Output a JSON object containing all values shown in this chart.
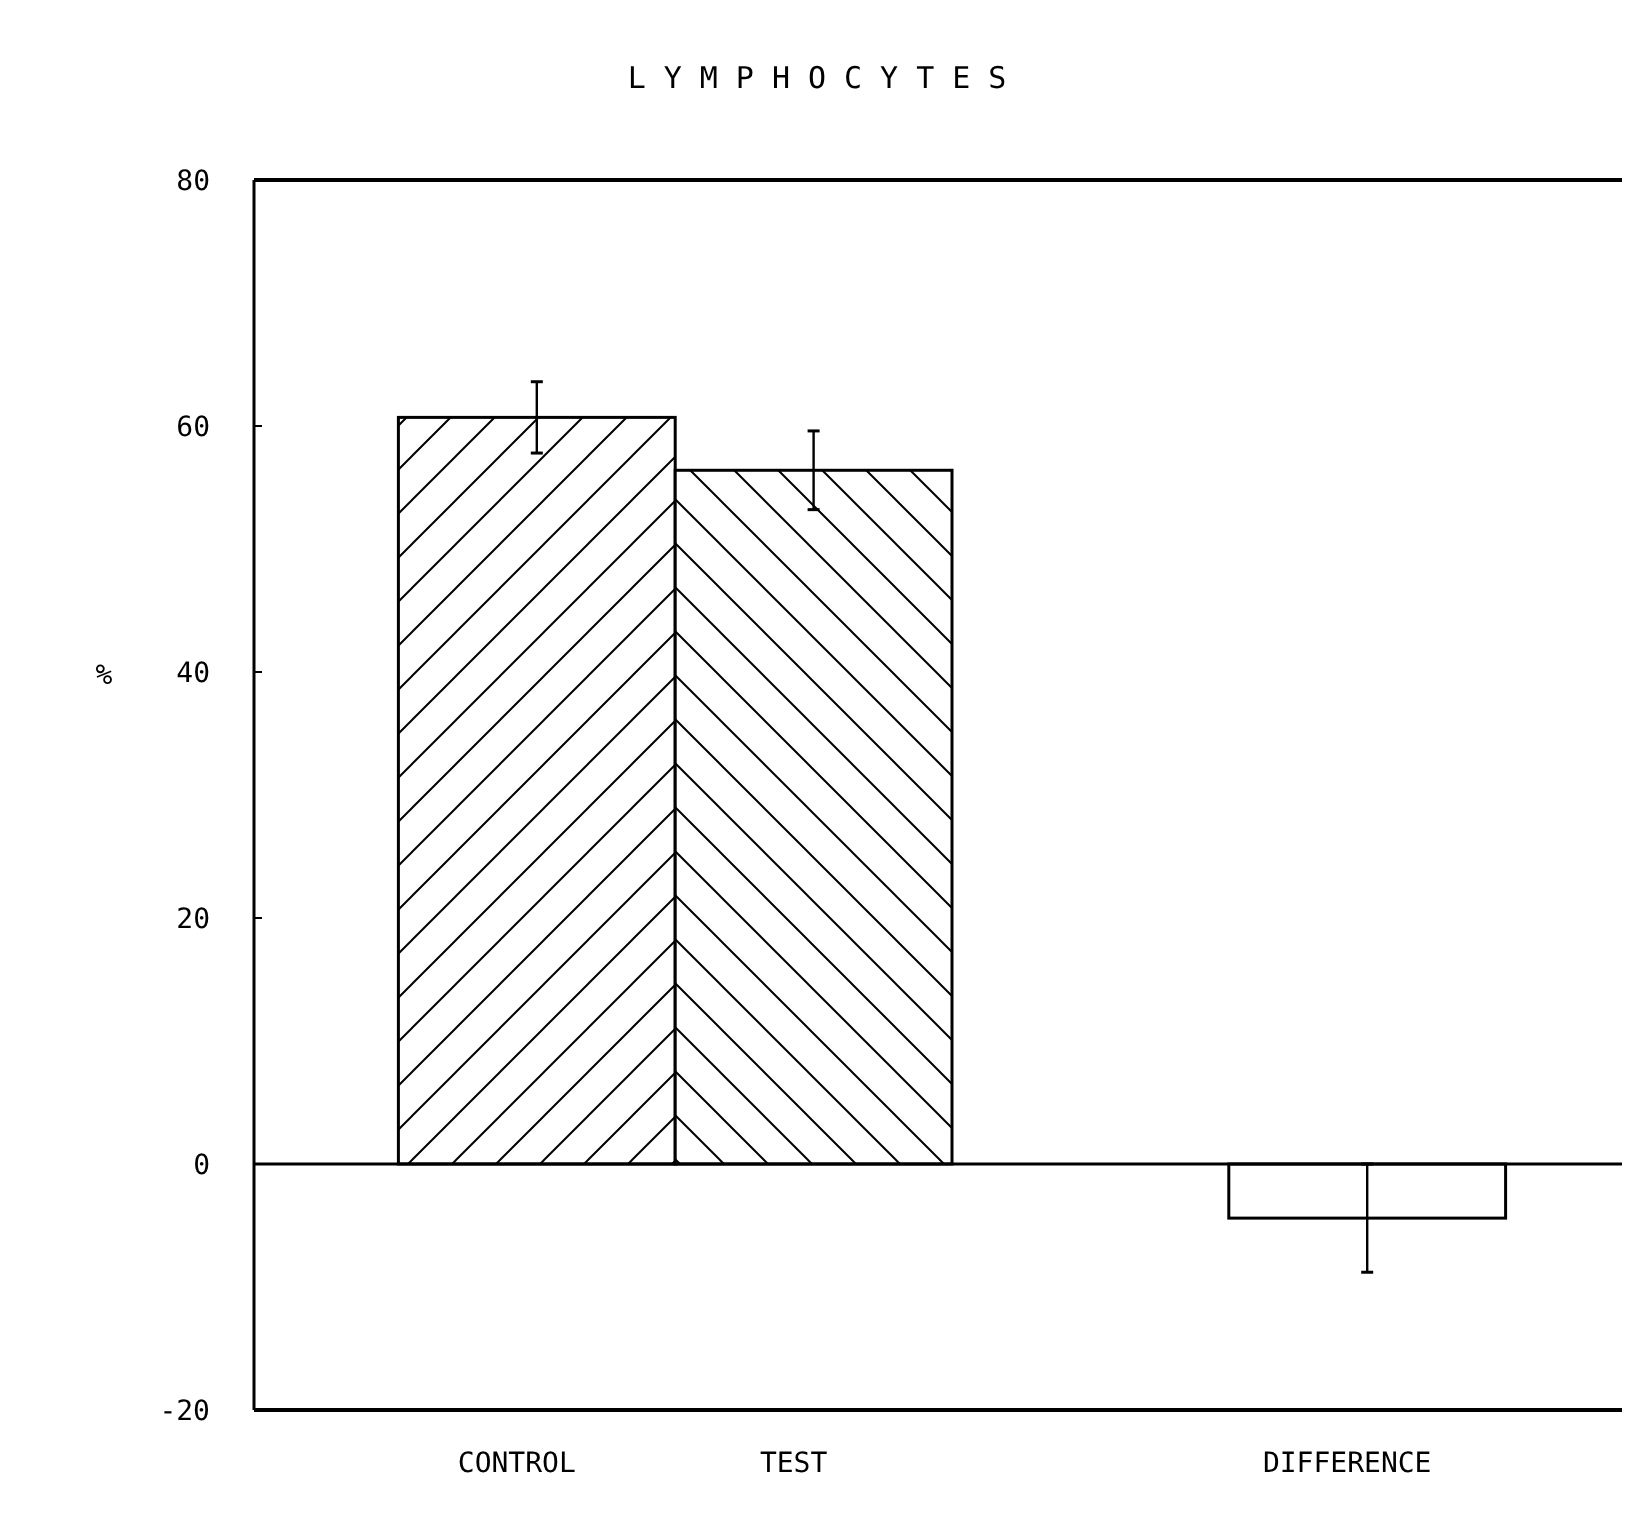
{
  "chart_data": {
    "type": "bar",
    "title": "LYMPHOCYTES",
    "ylabel": "%",
    "categories": [
      "CONTROL",
      "TEST",
      null,
      "DIFFERENCE"
    ],
    "values": [
      60.7,
      56.4,
      null,
      -4.4
    ],
    "errors": [
      2.9,
      3.2,
      null,
      4.4
    ],
    "ylim": [
      -20,
      80
    ],
    "yticks": [
      -20,
      0,
      20,
      40,
      60,
      80
    ]
  }
}
